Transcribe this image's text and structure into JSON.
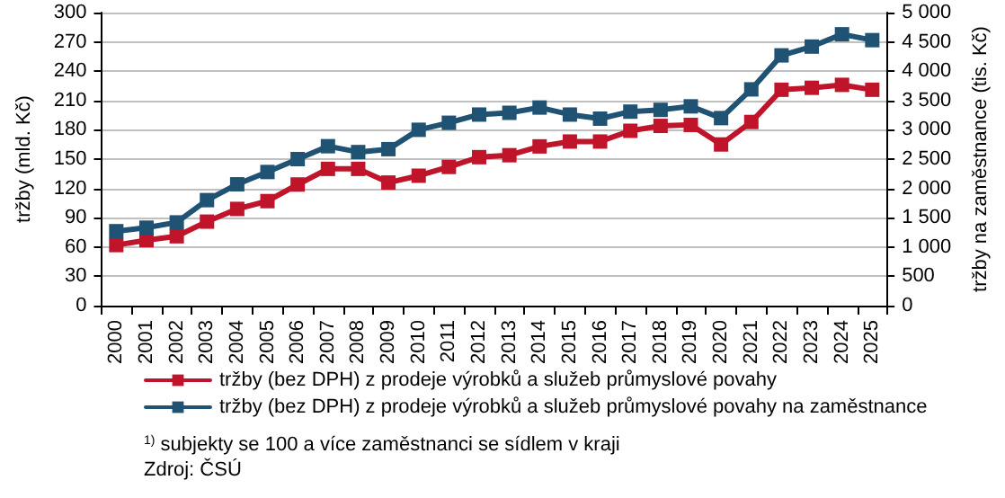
{
  "chart_data": {
    "type": "line",
    "ylabel": "tržby (mld. Kč)",
    "y2label": "tržby na zaměstnance (tis. Kč)",
    "categories": [
      "2000",
      "2001",
      "2002",
      "2003",
      "2004",
      "2005",
      "2006",
      "2007",
      "2008",
      "2009",
      "2010",
      "2011",
      "2012",
      "2013",
      "2014",
      "2015",
      "2016",
      "2017",
      "2018",
      "2019",
      "2020",
      "2021",
      "2022",
      "2023",
      "2024",
      "2025"
    ],
    "series": [
      {
        "name": "tržby (bez DPH) z prodeje výrobků a služeb průmyslové povahy",
        "color": "#c0142a",
        "values": [
          62,
          67,
          71,
          86,
          99,
          107,
          124,
          140,
          140,
          126,
          133,
          142,
          152,
          154,
          163,
          168,
          168,
          179,
          184,
          185,
          165,
          188,
          221,
          223,
          226,
          221
        ]
      },
      {
        "name": "tržby (bez DPH) z prodeje výrobků a služeb průmyslové povahy na zaměstnance",
        "color": "#1f5273",
        "axis": "y2",
        "values": [
          1270,
          1330,
          1420,
          1800,
          2070,
          2280,
          2500,
          2720,
          2620,
          2670,
          3000,
          3120,
          3260,
          3290,
          3380,
          3260,
          3190,
          3310,
          3340,
          3400,
          3200,
          3690,
          4270,
          4420,
          4630,
          4530
        ]
      }
    ],
    "ylim": [
      0,
      300
    ],
    "yticks": [
      0,
      30,
      60,
      90,
      120,
      150,
      180,
      210,
      240,
      270,
      300
    ],
    "y2lim": [
      0,
      5000
    ],
    "y2ticks": [
      0,
      500,
      {
        "value": 1000,
        "label": "1 000"
      },
      {
        "value": 1500,
        "label": "1 500"
      },
      {
        "value": 2000,
        "label": "2 000"
      },
      {
        "value": 2500,
        "label": "2 500"
      },
      {
        "value": 3000,
        "label": "3 000"
      },
      {
        "value": 3500,
        "label": "3 500"
      },
      {
        "value": 4000,
        "label": "4 000"
      },
      {
        "value": 4500,
        "label": "4 500"
      },
      {
        "value": 5000,
        "label": "5 000"
      }
    ],
    "grid": "y",
    "legend": "bottom",
    "marker": "square",
    "line_style": "solid",
    "annotations": [
      "$^{1)}$ subjekty se 100 a více zaměstnanci se sídlem v kraji",
      "Zdroj: ČSÚ"
    ]
  }
}
